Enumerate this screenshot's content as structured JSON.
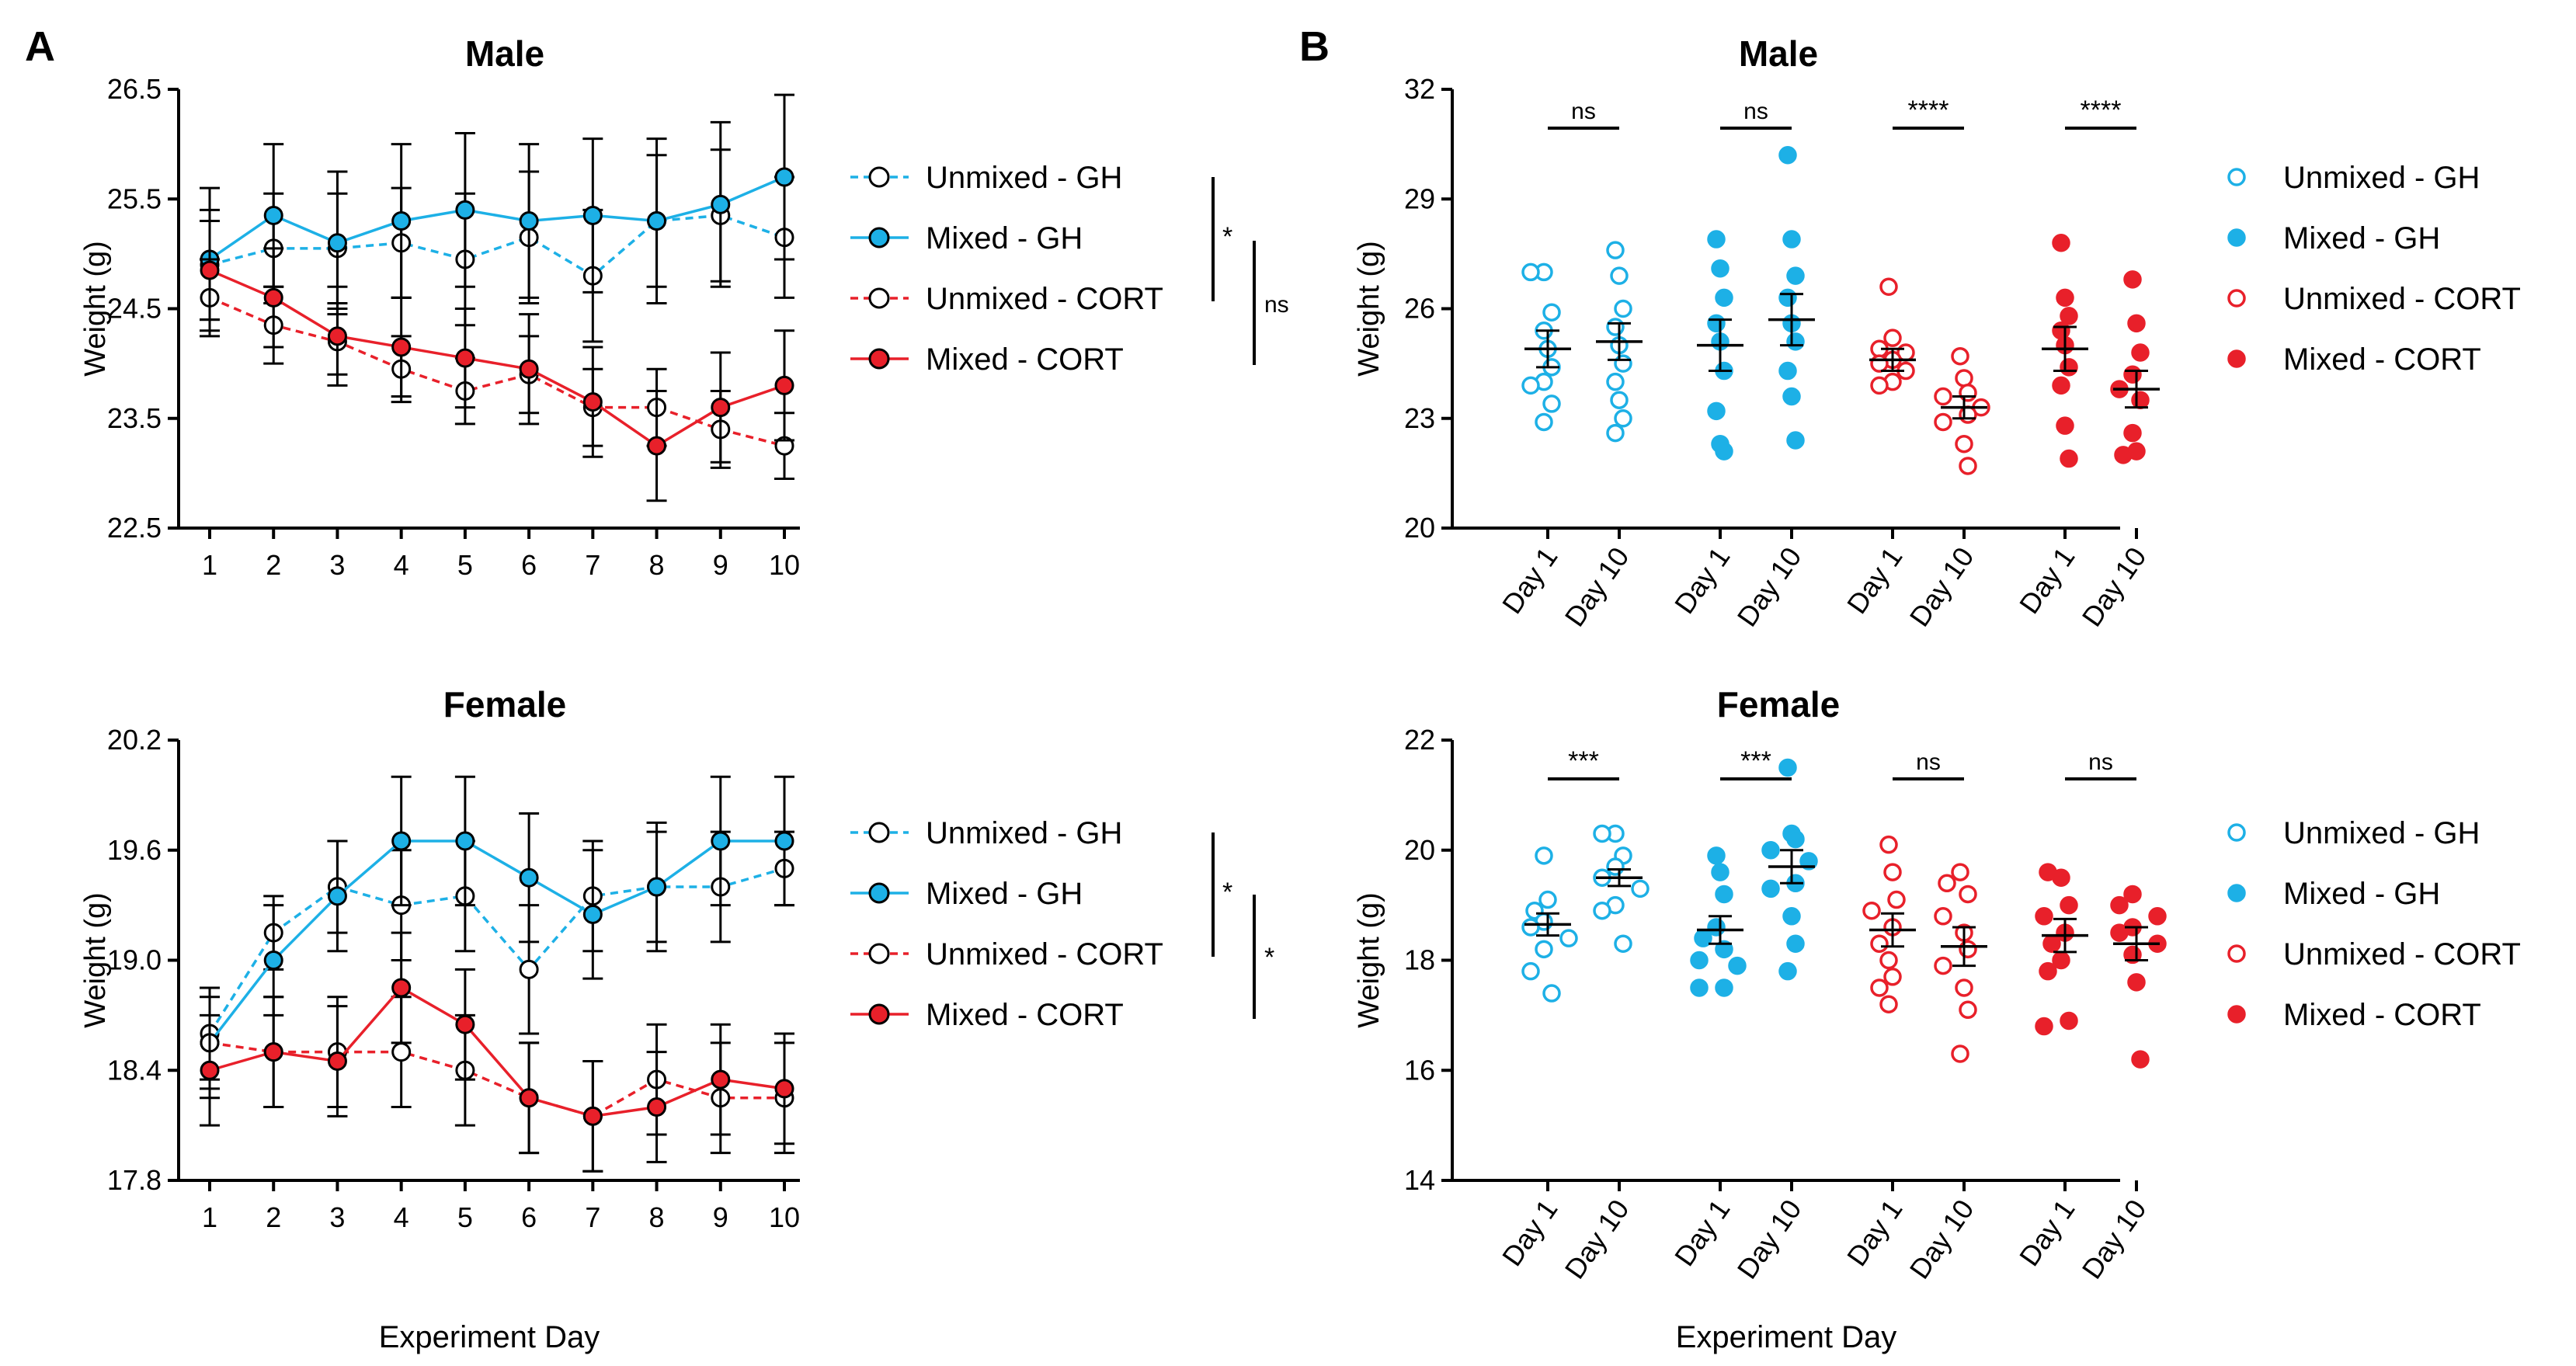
{
  "panels": {
    "a": "A",
    "b": "B"
  },
  "colors": {
    "gh": "#1DB0E6",
    "cort": "#E8202A",
    "axis": "#000000"
  },
  "legend": [
    "Unmixed - GH",
    "Mixed - GH",
    "Unmixed - CORT",
    "Mixed - CORT"
  ],
  "chart_data": [
    {
      "type": "line",
      "panel": "A",
      "title": "Male",
      "xlabel": "",
      "ylabel": "Weight (g)",
      "ylim": [
        22.5,
        26.5
      ],
      "yticks": [
        "22.5",
        "23.5",
        "24.5",
        "25.5",
        "26.5"
      ],
      "x": [
        1,
        2,
        3,
        4,
        5,
        6,
        7,
        8,
        9,
        10
      ],
      "series": [
        {
          "name": "Unmixed - GH",
          "values": [
            24.9,
            25.05,
            25.05,
            25.1,
            24.95,
            25.15,
            24.8,
            25.3,
            25.35,
            25.15
          ],
          "sem": [
            0.5,
            0.5,
            0.5,
            0.5,
            0.6,
            0.6,
            0.6,
            0.6,
            0.6,
            0.55
          ]
        },
        {
          "name": "Mixed - GH",
          "values": [
            24.95,
            25.35,
            25.1,
            25.3,
            25.4,
            25.3,
            25.35,
            25.3,
            25.45,
            25.7
          ],
          "sem": [
            0.65,
            0.65,
            0.65,
            0.7,
            0.7,
            0.7,
            0.7,
            0.75,
            0.75,
            0.75
          ]
        },
        {
          "name": "Unmixed - CORT",
          "values": [
            24.6,
            24.35,
            24.2,
            23.95,
            23.75,
            23.9,
            23.6,
            23.6,
            23.4,
            23.25
          ],
          "sem": [
            0.35,
            0.35,
            0.3,
            0.3,
            0.3,
            0.35,
            0.35,
            0.35,
            0.35,
            0.3
          ]
        },
        {
          "name": "Mixed - CORT",
          "values": [
            24.85,
            24.6,
            24.25,
            24.15,
            24.05,
            23.95,
            23.65,
            23.25,
            23.6,
            23.8
          ],
          "sem": [
            0.45,
            0.45,
            0.45,
            0.45,
            0.45,
            0.5,
            0.5,
            0.5,
            0.5,
            0.5
          ]
        }
      ],
      "comparisons": [
        {
          "label": "*",
          "between": [
            "GH",
            "CORT unmixed"
          ]
        },
        {
          "label": "ns",
          "between": [
            "Mixed - GH",
            "Mixed - CORT"
          ]
        }
      ]
    },
    {
      "type": "line",
      "panel": "A",
      "title": "Female",
      "xlabel": "Experiment Day",
      "ylabel": "Weight (g)",
      "ylim": [
        17.8,
        20.2
      ],
      "yticks": [
        "17.8",
        "18.4",
        "19.0",
        "19.6",
        "20.2"
      ],
      "x": [
        1,
        2,
        3,
        4,
        5,
        6,
        7,
        8,
        9,
        10
      ],
      "series": [
        {
          "name": "Unmixed - GH",
          "values": [
            18.6,
            19.15,
            19.4,
            19.3,
            19.35,
            18.95,
            19.35,
            19.4,
            19.4,
            19.5
          ],
          "sem": [
            0.25,
            0.2,
            0.25,
            0.3,
            0.3,
            0.35,
            0.3,
            0.3,
            0.3,
            0.2
          ]
        },
        {
          "name": "Mixed - GH",
          "values": [
            18.55,
            19.0,
            19.35,
            19.65,
            19.65,
            19.45,
            19.25,
            19.4,
            19.65,
            19.65
          ],
          "sem": [
            0.3,
            0.3,
            0.3,
            0.35,
            0.35,
            0.35,
            0.35,
            0.35,
            0.35,
            0.35
          ]
        },
        {
          "name": "Unmixed - CORT",
          "values": [
            18.55,
            18.5,
            18.5,
            18.5,
            18.4,
            18.25,
            18.15,
            18.35,
            18.25,
            18.25
          ],
          "sem": [
            0.25,
            0.3,
            0.3,
            0.3,
            0.3,
            0.3,
            0.3,
            0.3,
            0.3,
            0.3
          ]
        },
        {
          "name": "Mixed - CORT",
          "values": [
            18.4,
            18.5,
            18.45,
            18.85,
            18.65,
            18.25,
            18.15,
            18.2,
            18.35,
            18.3
          ],
          "sem": [
            0.3,
            0.3,
            0.3,
            0.3,
            0.3,
            0.3,
            0.3,
            0.3,
            0.3,
            0.3
          ]
        }
      ],
      "comparisons": [
        {
          "label": "*",
          "between": [
            "GH",
            "CORT unmixed"
          ]
        },
        {
          "label": "*",
          "between": [
            "Mixed - GH",
            "Mixed - CORT"
          ]
        }
      ]
    },
    {
      "type": "scatter",
      "panel": "B",
      "title": "Male",
      "xlabel": "",
      "ylabel": "Weight (g)",
      "ylim": [
        20,
        32
      ],
      "yticks": [
        "20",
        "23",
        "26",
        "29",
        "32"
      ],
      "categories": [
        "Day 1",
        "Day 10",
        "Day 1",
        "Day 10",
        "Day 1",
        "Day 10",
        "Day 1",
        "Day 10"
      ],
      "groups": [
        {
          "name": "Unmixed - GH",
          "day1": [
            27.0,
            27.0,
            25.9,
            25.4,
            24.9,
            24.4,
            24.0,
            23.9,
            23.4,
            22.9
          ],
          "day10": [
            27.6,
            26.9,
            26.0,
            25.5,
            25.0,
            24.5,
            24.0,
            23.5,
            23.0,
            22.6
          ],
          "mean": [
            24.9,
            25.1
          ],
          "sem": [
            0.5,
            0.5
          ],
          "sig": "ns"
        },
        {
          "name": "Mixed - GH",
          "day1": [
            27.9,
            27.1,
            26.3,
            25.6,
            25.1,
            24.3,
            23.2,
            22.3,
            22.1
          ],
          "day10": [
            30.2,
            27.9,
            26.9,
            26.3,
            25.6,
            25.1,
            24.3,
            23.6,
            22.4
          ],
          "mean": [
            25.0,
            25.7
          ],
          "sem": [
            0.7,
            0.7
          ],
          "sig": "ns"
        },
        {
          "name": "Unmixed - CORT",
          "day1": [
            26.6,
            25.2,
            24.9,
            24.8,
            24.6,
            24.5,
            24.3,
            24.0,
            23.9
          ],
          "day10": [
            24.7,
            24.1,
            23.7,
            23.6,
            23.3,
            23.1,
            22.9,
            22.3,
            21.7
          ],
          "mean": [
            24.6,
            23.3
          ],
          "sem": [
            0.3,
            0.3
          ],
          "sig": "****"
        },
        {
          "name": "Mixed - CORT",
          "day1": [
            27.8,
            26.3,
            25.8,
            25.4,
            25.0,
            24.4,
            23.9,
            22.8,
            21.9
          ],
          "day10": [
            26.8,
            25.6,
            24.8,
            24.2,
            23.8,
            23.5,
            22.6,
            22.1,
            22.0
          ],
          "mean": [
            24.9,
            23.8
          ],
          "sem": [
            0.6,
            0.5
          ],
          "sig": "****"
        }
      ]
    },
    {
      "type": "scatter",
      "panel": "B",
      "title": "Female",
      "xlabel": "Experiment Day",
      "ylabel": "Weight (g)",
      "ylim": [
        14,
        22
      ],
      "yticks": [
        "14",
        "16",
        "18",
        "20",
        "22"
      ],
      "categories": [
        "Day 1",
        "Day 10",
        "Day 1",
        "Day 10",
        "Day 1",
        "Day 10",
        "Day 1",
        "Day 10"
      ],
      "groups": [
        {
          "name": "Unmixed - GH",
          "day1": [
            19.9,
            19.1,
            18.9,
            18.7,
            18.6,
            18.4,
            18.2,
            17.8,
            17.4
          ],
          "day10": [
            20.3,
            20.3,
            19.9,
            19.7,
            19.5,
            19.3,
            19.0,
            18.9,
            18.3
          ],
          "mean": [
            18.65,
            19.5
          ],
          "sem": [
            0.2,
            0.15
          ],
          "sig": "***"
        },
        {
          "name": "Mixed - GH",
          "day1": [
            19.9,
            19.6,
            19.2,
            18.6,
            18.4,
            18.2,
            18.0,
            17.9,
            17.5,
            17.5
          ],
          "day10": [
            21.5,
            20.3,
            20.2,
            20.0,
            19.8,
            19.4,
            19.3,
            18.8,
            18.3,
            17.8
          ],
          "mean": [
            18.55,
            19.7
          ],
          "sem": [
            0.25,
            0.3
          ],
          "sig": "***"
        },
        {
          "name": "Unmixed - CORT",
          "day1": [
            20.1,
            19.6,
            19.1,
            18.9,
            18.6,
            18.3,
            18.0,
            17.7,
            17.5,
            17.2
          ],
          "day10": [
            19.6,
            19.4,
            19.2,
            18.8,
            18.5,
            18.2,
            17.9,
            17.5,
            17.1,
            16.3
          ],
          "mean": [
            18.55,
            18.25
          ],
          "sem": [
            0.3,
            0.35
          ],
          "sig": "ns"
        },
        {
          "name": "Mixed - CORT",
          "day1": [
            19.5,
            19.6,
            19.0,
            18.8,
            18.5,
            18.3,
            18.0,
            17.8,
            16.9,
            16.8
          ],
          "day10": [
            19.2,
            19.0,
            18.8,
            18.6,
            18.5,
            18.3,
            18.1,
            17.6,
            16.2
          ],
          "mean": [
            18.45,
            18.3
          ],
          "sem": [
            0.3,
            0.3
          ],
          "sig": "ns"
        }
      ]
    }
  ]
}
